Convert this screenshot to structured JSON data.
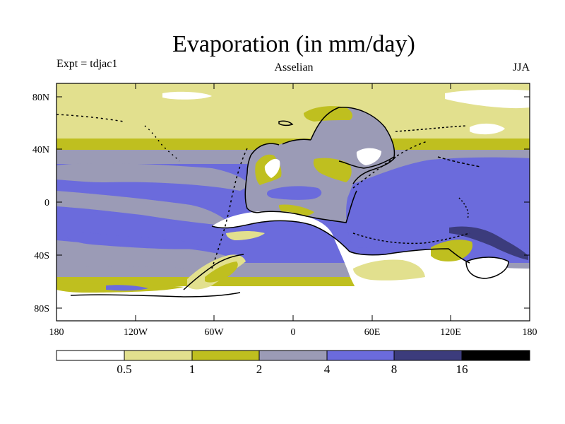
{
  "header": {
    "title": "Evaporation (in mm/day)",
    "experiment": "Expt = tdjac1",
    "period": "Asselian",
    "season": "JJA"
  },
  "map": {
    "lat_ticks": [
      "80N",
      "40N",
      "0",
      "40S",
      "80S"
    ],
    "lon_ticks": [
      "180",
      "120W",
      "60W",
      "0",
      "60E",
      "120E",
      "180"
    ]
  },
  "colorbar": {
    "labels": [
      "0.5",
      "1",
      "2",
      "4",
      "8",
      "16"
    ],
    "colors": [
      "#ffffff",
      "#e2e08e",
      "#bfbf1f",
      "#9b9bb6",
      "#6b6bdc",
      "#3c3c7c",
      "#000000"
    ]
  },
  "colors": {
    "white": "#ffffff",
    "pale": "#e2e08e",
    "olive": "#bfbf1f",
    "gray": "#9b9bb6",
    "blue": "#6b6bdc",
    "navy": "#3c3c7c"
  }
}
